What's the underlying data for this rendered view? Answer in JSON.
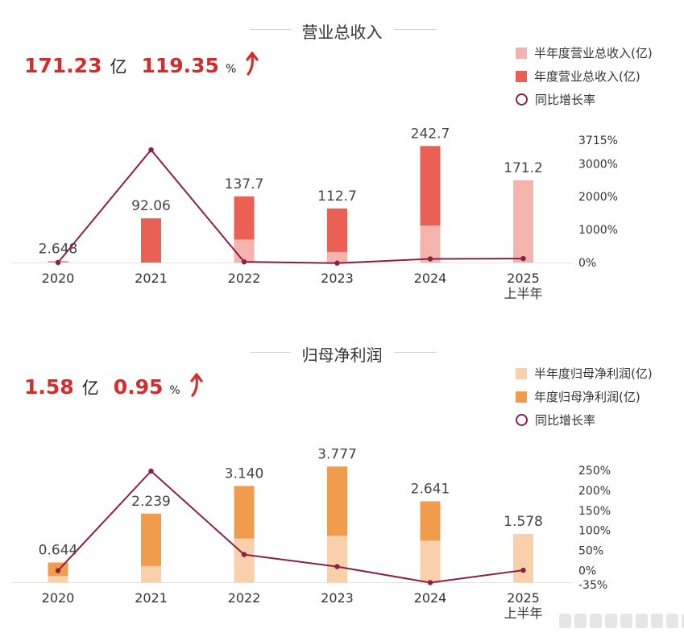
{
  "colors": {
    "revenue_half": "#f4b3ac",
    "revenue_annual": "#ea6055",
    "profit_half": "#f9d0ab",
    "profit_annual": "#f09c4c",
    "growth_line": "#8b2142",
    "kpi_red": "#d22c2c"
  },
  "revenue": {
    "title": "营业总收入",
    "kpi": {
      "value": "171.23",
      "unit": "亿",
      "growth": "119.35",
      "growth_unit": "%",
      "trend_icon": "arrow-up-icon"
    },
    "legend": {
      "half": "半年度营业总收入(亿)",
      "annual": "年度营业总收入(亿)",
      "growth": "同比增长率"
    }
  },
  "profit": {
    "title": "归母净利润",
    "kpi": {
      "value": "1.58",
      "unit": "亿",
      "growth": "0.95",
      "growth_unit": "%",
      "trend_icon": "arrow-up-icon"
    },
    "legend": {
      "half": "半年度归母净利润(亿)",
      "annual": "年度归母净利润(亿)",
      "growth": "同比增长率"
    }
  },
  "chart_data": [
    {
      "type": "bar",
      "title": "营业总收入",
      "categories": [
        "2020",
        "2021",
        "2022",
        "2023",
        "2024",
        "2025\n上半年"
      ],
      "series": [
        {
          "name": "半年度营业总收入(亿)",
          "values": [
            1.2,
            null,
            48,
            22,
            77,
            171.2
          ]
        },
        {
          "name": "年度营业总收入(亿)",
          "values": [
            2.648,
            92.06,
            137.7,
            112.7,
            242.7,
            null
          ]
        },
        {
          "name": "同比增长率",
          "type": "line",
          "axis": "right",
          "values": [
            0,
            3420,
            20,
            -18,
            110,
            119.35
          ]
        }
      ],
      "data_labels": [
        "2.648",
        "92.06",
        "137.7",
        "112.7",
        "242.7",
        "171.2"
      ],
      "ylim": [
        0,
        265
      ],
      "y2lim": [
        0,
        3715
      ],
      "y2_ticks": [
        "0%",
        "1000%",
        "2000%",
        "3000%",
        "3715%"
      ],
      "y2_tick_values": [
        0,
        1000,
        2000,
        3000,
        3715
      ]
    },
    {
      "type": "bar",
      "title": "归母净利润",
      "categories": [
        "2020",
        "2021",
        "2022",
        "2023",
        "2024",
        "2025\n上半年"
      ],
      "series": [
        {
          "name": "半年度归母净利润(亿)",
          "values": [
            0.21,
            0.53,
            1.43,
            1.52,
            1.36,
            1.578
          ]
        },
        {
          "name": "年度归母净利润(亿)",
          "values": [
            0.644,
            2.239,
            3.14,
            3.777,
            2.641,
            null
          ]
        },
        {
          "name": "同比增长率",
          "type": "line",
          "axis": "right",
          "values": [
            0,
            248,
            40,
            10,
            -30,
            0.95
          ]
        }
      ],
      "data_labels": [
        "0.644",
        "2.239",
        "3.140",
        "3.777",
        "2.641",
        "1.578"
      ],
      "ylim": [
        0,
        4.1
      ],
      "y2lim": [
        -35,
        250
      ],
      "y2_ticks": [
        "-35%",
        "0%",
        "50%",
        "100%",
        "150%",
        "200%",
        "250%"
      ],
      "y2_tick_values": [
        -35,
        0,
        50,
        100,
        150,
        200,
        250
      ]
    }
  ]
}
